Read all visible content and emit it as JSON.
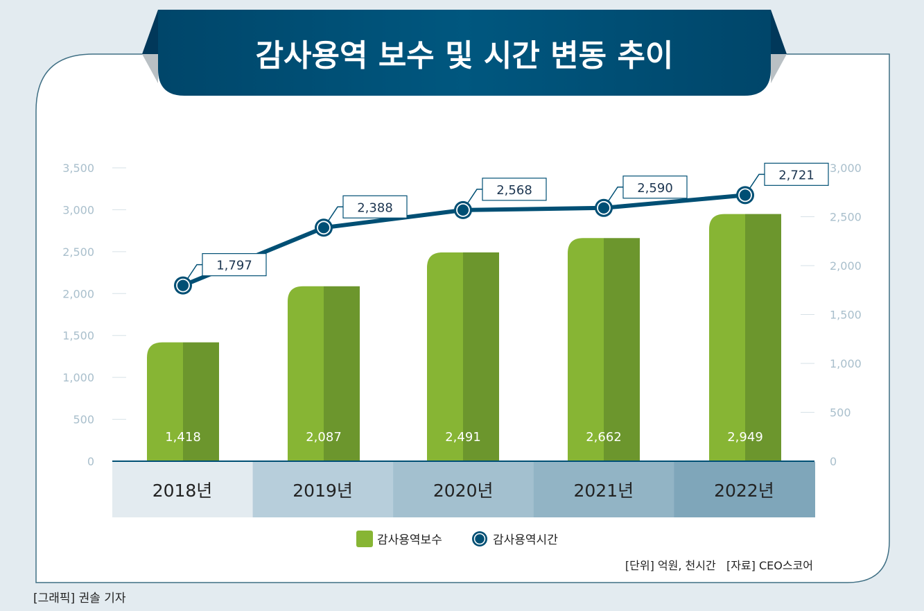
{
  "title": "감사용역 보수 및 시간 변동 추이",
  "credit": "[그래픽] 권솔 기자",
  "source_note": "[단위] 억원, 천시간   [자료] CEO스코어",
  "colors": {
    "bar_light": "#87b534",
    "bar_dark": "#6c962d",
    "line": "#004f74",
    "banner": "#00527a",
    "background": "#e3ebf0"
  },
  "chart_data": {
    "type": "bar+line",
    "categories": [
      "2018년",
      "2019년",
      "2020년",
      "2021년",
      "2022년"
    ],
    "series": [
      {
        "name": "감사용역보수",
        "type": "bar",
        "axis": "left",
        "values": [
          1418,
          2087,
          2491,
          2662,
          2949
        ],
        "labels": [
          "1,418",
          "2,087",
          "2,491",
          "2,662",
          "2,949"
        ]
      },
      {
        "name": "감사용역시간",
        "type": "line",
        "axis": "right",
        "values": [
          1797,
          2388,
          2568,
          2590,
          2721
        ],
        "labels": [
          "1,797",
          "2,388",
          "2,568",
          "2,590",
          "2,721"
        ]
      }
    ],
    "left_axis": {
      "ylim": [
        0,
        3500
      ],
      "ticks": [
        "0",
        "500",
        "1,000",
        "1,500",
        "2,000",
        "2,500",
        "3,000",
        "3,500"
      ]
    },
    "right_axis": {
      "ylim": [
        0,
        3000
      ],
      "ticks": [
        "0",
        "500",
        "1,000",
        "1,500",
        "2,000",
        "2,500",
        "3,000"
      ]
    },
    "legend_position": "bottom",
    "grid": false
  }
}
